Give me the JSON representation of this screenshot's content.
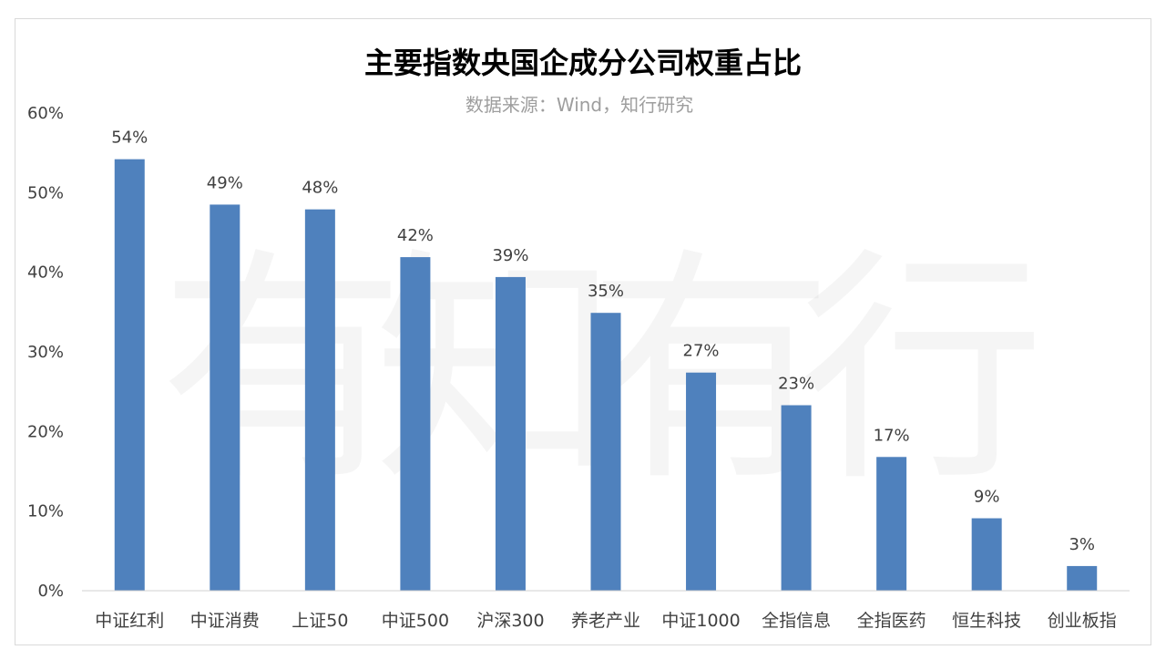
{
  "chart_data": {
    "type": "bar",
    "title": "主要指数央国企成分公司权重占比",
    "subtitle": "数据来源：Wind，知行研究",
    "watermark": "有知有行",
    "categories": [
      "中证红利",
      "中证消费",
      "上证50",
      "中证500",
      "沪深300",
      "养老产业",
      "中证1000",
      "全指信息",
      "全指医药",
      "恒生科技",
      "创业板指"
    ],
    "values": [
      54.2,
      48.5,
      47.9,
      41.9,
      39.4,
      34.9,
      27.4,
      23.3,
      16.8,
      9.1,
      3.1
    ],
    "data_labels": [
      "54%",
      "49%",
      "48%",
      "42%",
      "39%",
      "35%",
      "27%",
      "23%",
      "17%",
      "9%",
      "3%"
    ],
    "y_ticks": [
      "0%",
      "10%",
      "20%",
      "30%",
      "40%",
      "50%",
      "60%"
    ],
    "ylim": [
      0,
      60
    ],
    "grid": false,
    "legend": "none",
    "bar_color": "#4f81bd"
  }
}
